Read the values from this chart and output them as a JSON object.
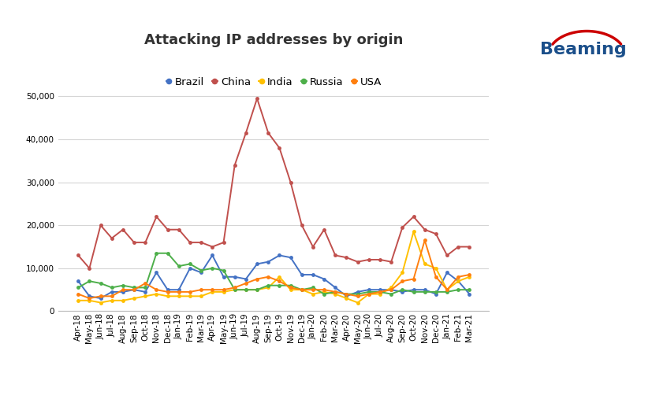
{
  "title": "Attacking IP addresses by origin",
  "categories": [
    "Apr-18",
    "May-18",
    "Jun-18",
    "Jul-18",
    "Aug-18",
    "Sep-18",
    "Oct-18",
    "Nov-18",
    "Dec-18",
    "Jan-19",
    "Feb-19",
    "Mar-19",
    "Apr-19",
    "May-19",
    "Jun-19",
    "Jul-19",
    "Aug-19",
    "Sep-19",
    "Oct-19",
    "Nov-19",
    "Dec-19",
    "Jan-20",
    "Feb-20",
    "Mar-20",
    "Apr-20",
    "May-20",
    "Jun-20",
    "Jul-20",
    "Aug-20",
    "Sep-20",
    "Oct-20",
    "Nov-20",
    "Dec-20",
    "Jan-21",
    "Feb-21",
    "Mar-21"
  ],
  "series": {
    "Brazil": {
      "color": "#4472C4",
      "data": [
        7000,
        3500,
        3000,
        4500,
        4500,
        5000,
        4500,
        9000,
        5000,
        5000,
        10000,
        9000,
        13000,
        8000,
        8000,
        7500,
        11000,
        11500,
        13000,
        12500,
        8500,
        8500,
        7500,
        5500,
        3500,
        4500,
        5000,
        5000,
        5000,
        4500,
        5000,
        5000,
        4000,
        9000,
        7000,
        4000
      ]
    },
    "China": {
      "color": "#C0504D",
      "data": [
        13000,
        10000,
        20000,
        17000,
        19000,
        16000,
        16000,
        22000,
        19000,
        19000,
        16000,
        16000,
        15000,
        16000,
        34000,
        41500,
        49500,
        41500,
        38000,
        30000,
        20000,
        15000,
        19000,
        13000,
        12500,
        11500,
        12000,
        12000,
        11500,
        19500,
        22000,
        19000,
        18000,
        13000,
        15000,
        15000
      ]
    },
    "India": {
      "color": "#FFC000",
      "data": [
        2500,
        2500,
        2000,
        2500,
        2500,
        3000,
        3500,
        4000,
        3500,
        3500,
        3500,
        3500,
        4500,
        4500,
        5000,
        5000,
        5000,
        5500,
        8000,
        5000,
        5000,
        4000,
        4500,
        4000,
        3000,
        2000,
        4000,
        4000,
        5500,
        9000,
        18500,
        11000,
        10000,
        5000,
        7000,
        8000
      ]
    },
    "Russia": {
      "color": "#4DAF4A",
      "data": [
        5500,
        7000,
        6500,
        5500,
        6000,
        5500,
        5500,
        13500,
        13500,
        10500,
        11000,
        9500,
        10000,
        9500,
        5000,
        5000,
        5000,
        6000,
        6000,
        6000,
        5000,
        5500,
        4000,
        4500,
        4000,
        4000,
        4500,
        4500,
        4000,
        5000,
        4500,
        4500,
        4500,
        4500,
        5000,
        5000
      ]
    },
    "USA": {
      "color": "#FF7F0E",
      "data": [
        4000,
        3000,
        3500,
        3500,
        5000,
        5000,
        6500,
        5000,
        4500,
        4500,
        4500,
        5000,
        5000,
        5000,
        5500,
        6500,
        7500,
        8000,
        7000,
        5500,
        5000,
        5000,
        5000,
        4500,
        4000,
        3500,
        4000,
        4500,
        5000,
        7000,
        7500,
        16500,
        8000,
        5000,
        8000,
        8500
      ]
    }
  },
  "ylim": [
    0,
    52000
  ],
  "yticks": [
    0,
    10000,
    20000,
    30000,
    40000,
    50000
  ],
  "background_color": "#ffffff",
  "grid_color": "#d5d5d5",
  "title_fontsize": 13,
  "legend_fontsize": 9.5,
  "tick_fontsize": 7.5
}
